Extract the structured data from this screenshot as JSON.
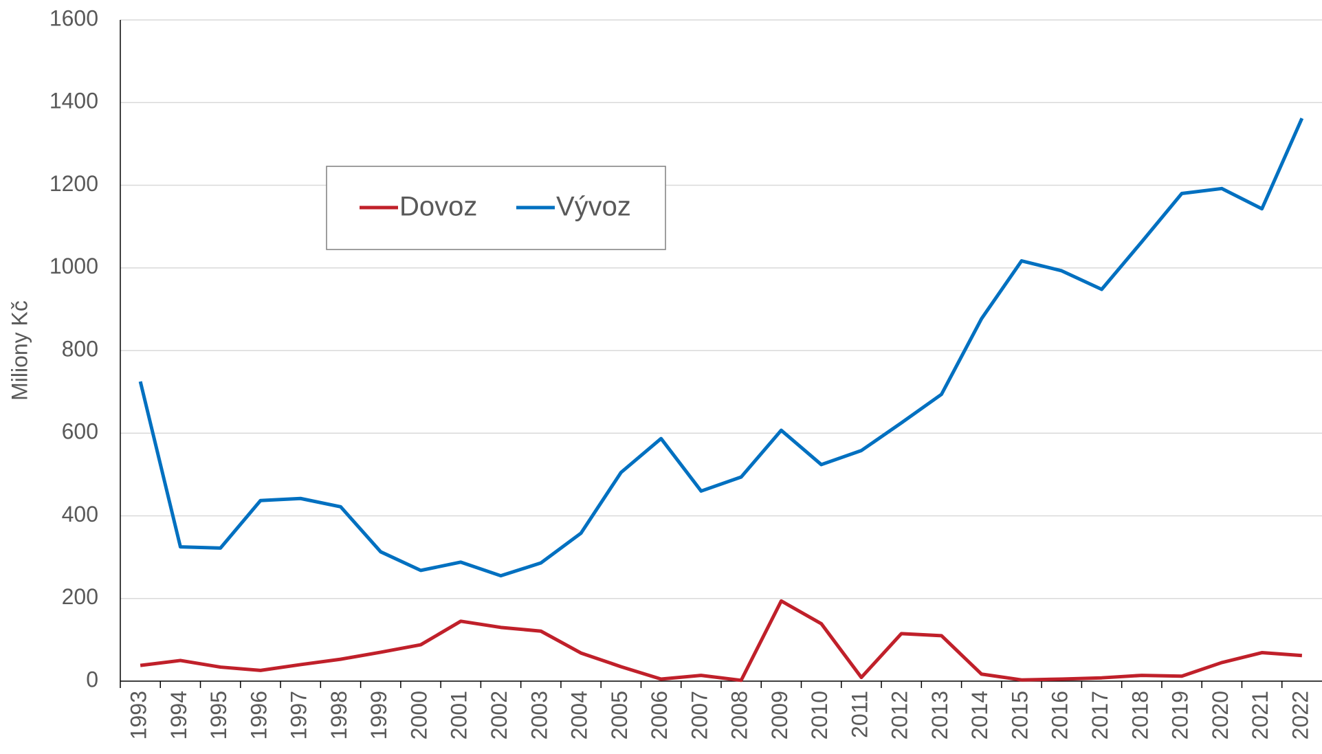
{
  "chart_data": {
    "type": "line",
    "y_label": "Miliony Kč",
    "categories": [
      "1993",
      "1994",
      "1995",
      "1996",
      "1997",
      "1998",
      "1999",
      "2000",
      "2001",
      "2002",
      "2003",
      "2004",
      "2005",
      "2006",
      "2007",
      "2008",
      "2009",
      "2010",
      "2011",
      "2012",
      "2013",
      "2014",
      "2015",
      "2016",
      "2017",
      "2018",
      "2019",
      "2020",
      "2021",
      "2022"
    ],
    "series": [
      {
        "name": "Dovoz",
        "color": "#c0202a",
        "values": [
          38,
          50,
          34,
          26,
          40,
          53,
          70,
          88,
          145,
          130,
          121,
          68,
          35,
          5,
          14,
          2,
          194,
          139,
          9,
          115,
          110,
          17,
          3,
          5,
          8,
          14,
          12,
          45,
          69,
          62
        ]
      },
      {
        "name": "Vývoz",
        "color": "#0070c0",
        "values": [
          725,
          325,
          322,
          437,
          442,
          422,
          313,
          268,
          288,
          255,
          286,
          358,
          505,
          587,
          460,
          494,
          607,
          524,
          558,
          625,
          694,
          877,
          1017,
          993,
          948,
          1063,
          1180,
          1192,
          1143,
          1362
        ]
      }
    ],
    "ylim": [
      0,
      1600
    ],
    "yticks": [
      0,
      200,
      400,
      600,
      800,
      1000,
      1200,
      1400,
      1600
    ],
    "grid": true,
    "legend_position": "upper left"
  }
}
